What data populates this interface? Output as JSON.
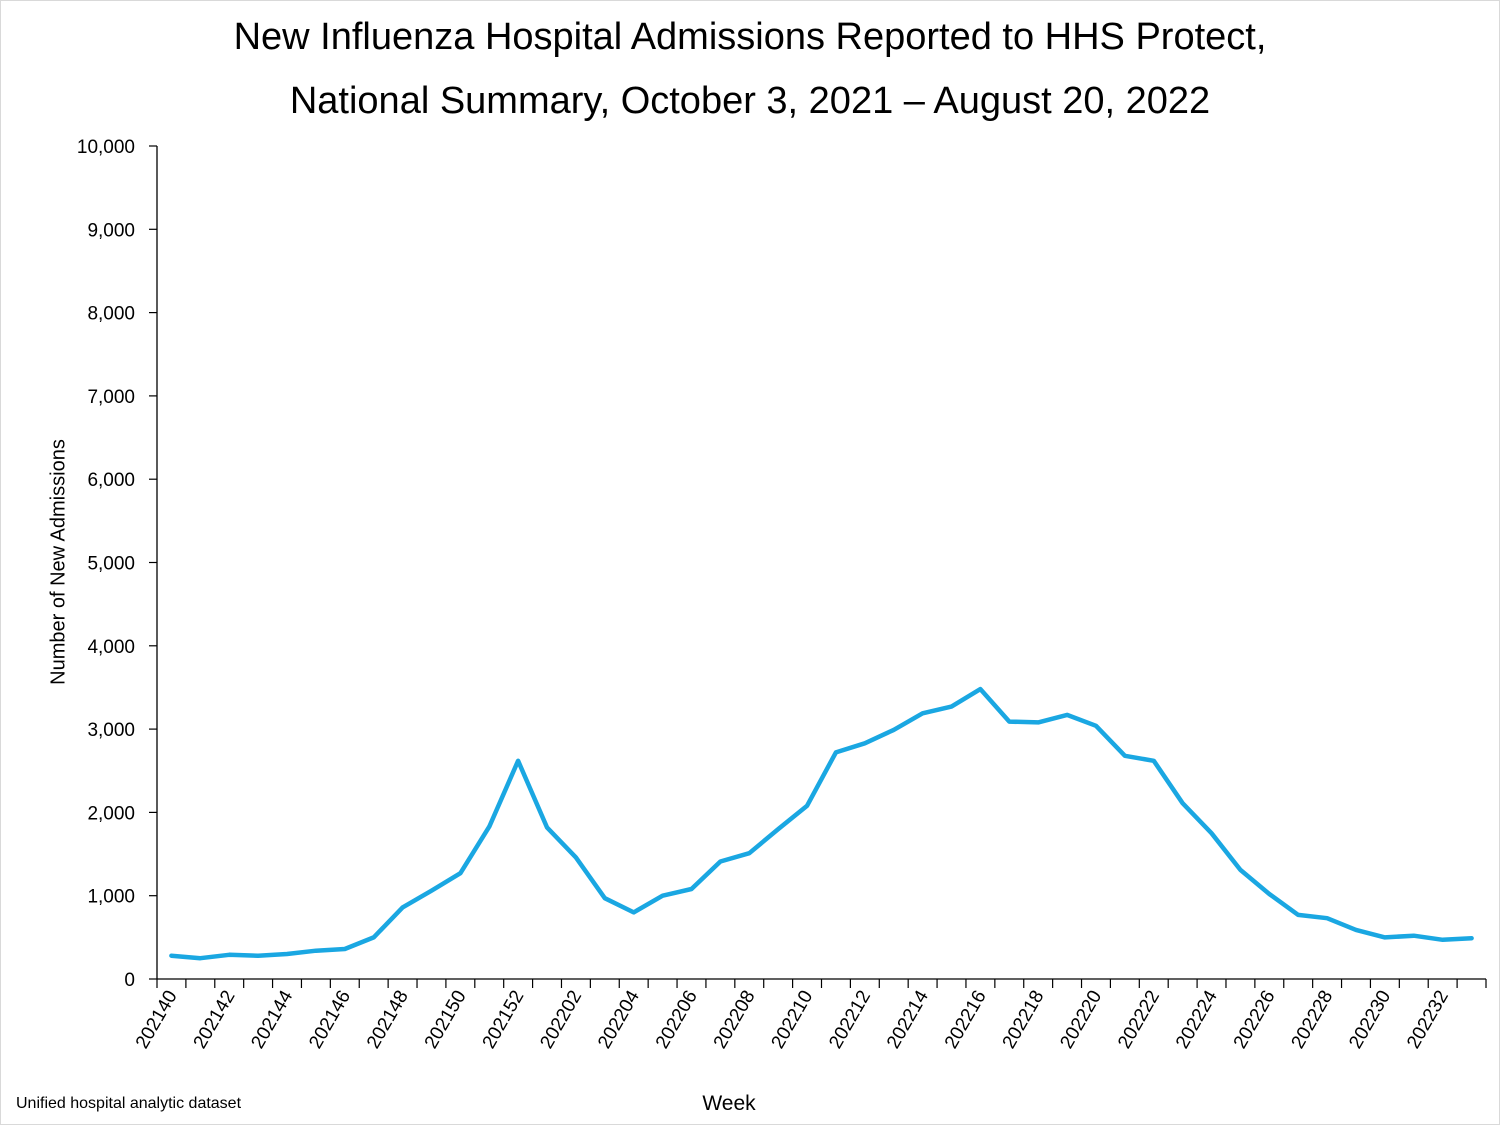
{
  "title_line1": "New Influenza Hospital Admissions Reported to HHS Protect,",
  "title_line2": "National Summary, October 3, 2021 – August 20, 2022",
  "source_note": "Unified hospital analytic dataset",
  "colors": {
    "line": "#1aa7e2",
    "axis": "#000000"
  },
  "chart_data": {
    "type": "line",
    "title": "New Influenza Hospital Admissions Reported to HHS Protect, National Summary, October 3, 2021 – August 20, 2022",
    "xlabel": "Week",
    "ylabel": "Number of New Admissions",
    "ylim": [
      0,
      10000
    ],
    "yticks": [
      0,
      1000,
      2000,
      3000,
      4000,
      5000,
      6000,
      7000,
      8000,
      9000,
      10000
    ],
    "ytick_labels": [
      "0",
      "1,000",
      "2,000",
      "3,000",
      "4,000",
      "5,000",
      "6,000",
      "7,000",
      "8,000",
      "9,000",
      "10,000"
    ],
    "grid": false,
    "x": [
      "202140",
      "202141",
      "202142",
      "202143",
      "202144",
      "202145",
      "202146",
      "202147",
      "202148",
      "202149",
      "202150",
      "202151",
      "202152",
      "202201",
      "202202",
      "202203",
      "202204",
      "202205",
      "202206",
      "202207",
      "202208",
      "202209",
      "202210",
      "202211",
      "202212",
      "202213",
      "202214",
      "202215",
      "202216",
      "202217",
      "202218",
      "202219",
      "202220",
      "202221",
      "202222",
      "202223",
      "202224",
      "202225",
      "202226",
      "202227",
      "202228",
      "202229",
      "202230",
      "202231",
      "202232",
      "202233"
    ],
    "x_tick_labels": [
      "202140",
      "202142",
      "202144",
      "202146",
      "202148",
      "202150",
      "202152",
      "202202",
      "202204",
      "202206",
      "202208",
      "202210",
      "202212",
      "202214",
      "202216",
      "202218",
      "202220",
      "202222",
      "202224",
      "202226",
      "202228",
      "202230",
      "202232"
    ],
    "series": [
      {
        "values": [
          280,
          250,
          290,
          280,
          300,
          340,
          360,
          500,
          860,
          1060,
          1270,
          1830,
          2620,
          1820,
          1460,
          970,
          800,
          1000,
          1080,
          1410,
          1510,
          1800,
          2080,
          2720,
          2830,
          2990,
          3190,
          3270,
          3480,
          3090,
          3080,
          3170,
          3040,
          2680,
          2620,
          2110,
          1750,
          1310,
          1020,
          770,
          730,
          590,
          500,
          520,
          470,
          490
        ]
      }
    ]
  }
}
